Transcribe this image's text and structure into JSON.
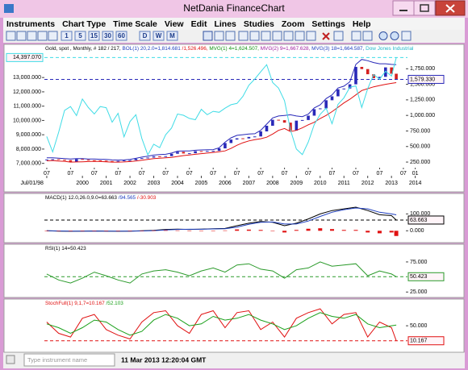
{
  "window": {
    "title": "NetDania FinanceChart"
  },
  "menu": [
    "Instruments",
    "Chart Type",
    "Time Scale",
    "View",
    "Edit",
    "Lines",
    "Studies",
    "Zoom",
    "Settings",
    "Help"
  ],
  "toolbar": {
    "intervals": [
      "1",
      "5",
      "15",
      "30",
      "60",
      "D",
      "W",
      "M"
    ]
  },
  "chart_data": [
    {
      "type": "candlestick",
      "x": [
        1998.5,
        1998.75,
        1999,
        1999.25,
        1999.5,
        1999.75,
        2000,
        2000.25,
        2000.5,
        2000.75,
        2001,
        2001.25,
        2001.5,
        2001.75,
        2002,
        2002.25,
        2002.5,
        2002.75,
        2003,
        2003.25,
        2003.5,
        2003.75,
        2004,
        2004.25,
        2004.5,
        2004.75,
        2005,
        2005.25,
        2005.5,
        2005.75,
        2006,
        2006.25,
        2006.5,
        2006.75,
        2007,
        2007.25,
        2007.5,
        2007.75,
        2008,
        2008.25,
        2008.5,
        2008.75,
        2009,
        2009.25,
        2009.5,
        2009.75,
        2010,
        2010.25,
        2010.5,
        2010.75,
        2011,
        2011.25,
        2011.5,
        2011.75,
        2012,
        2012.25,
        2012.5,
        2012.75,
        2013,
        2013.2
      ],
      "xlim": [
        1998.4,
        2015.2
      ],
      "xticks": [
        {
          "value": 1998.5,
          "label": "Jul/01/98"
        },
        {
          "value": 2000,
          "label": "2000"
        },
        {
          "value": 2001,
          "label": "2001"
        },
        {
          "value": 2002,
          "label": "2002"
        },
        {
          "value": 2003,
          "label": "2003"
        },
        {
          "value": 2004,
          "label": "2004"
        },
        {
          "value": 2005,
          "label": "2005"
        },
        {
          "value": 2006,
          "label": "2006"
        },
        {
          "value": 2007,
          "label": "2007"
        },
        {
          "value": 2008,
          "label": "2008"
        },
        {
          "value": 2009,
          "label": "2009"
        },
        {
          "value": 2010,
          "label": "2010"
        },
        {
          "value": 2011,
          "label": "2011"
        },
        {
          "value": 2012,
          "label": "2012"
        },
        {
          "value": 2013,
          "label": "2013"
        },
        {
          "value": 2014,
          "label": "2014"
        }
      ],
      "xticks_minor": [
        {
          "value": 1998.5,
          "label": "07"
        },
        {
          "value": 1999.5,
          "label": "07"
        },
        {
          "value": 2000.5,
          "label": "07"
        },
        {
          "value": 2001.5,
          "label": "07"
        },
        {
          "value": 2002.5,
          "label": "07"
        },
        {
          "value": 2003.5,
          "label": "07"
        },
        {
          "value": 2004.5,
          "label": "07"
        },
        {
          "value": 2005.5,
          "label": "07"
        },
        {
          "value": 2006.5,
          "label": "07"
        },
        {
          "value": 2007.5,
          "label": "07"
        },
        {
          "value": 2008.5,
          "label": "07"
        },
        {
          "value": 2009.5,
          "label": "07"
        },
        {
          "value": 2010.5,
          "label": "07"
        },
        {
          "value": 2011.5,
          "label": "07"
        },
        {
          "value": 2012.5,
          "label": "07"
        },
        {
          "value": 2013.5,
          "label": "07"
        },
        {
          "value": 2014,
          "label": "01"
        }
      ],
      "ylim": [
        6700,
        14700
      ],
      "yticks": [
        {
          "value": 13000,
          "label": "13,000.000"
        },
        {
          "value": 12000,
          "label": "12,000.000"
        },
        {
          "value": 11000,
          "label": "11,000.000"
        },
        {
          "value": 10000,
          "label": "10,000.000"
        },
        {
          "value": 9000,
          "label": "9,000.000"
        },
        {
          "value": 8000,
          "label": "8,000.000"
        },
        {
          "value": 7000,
          "label": "7,000.000"
        }
      ],
      "y2lim": [
        160,
        2000
      ],
      "y2ticks": [
        {
          "value": 1750,
          "label": "1,750.000"
        },
        {
          "value": 1500,
          "label": "1,500.000"
        },
        {
          "value": 1250,
          "label": "1,250.000"
        },
        {
          "value": 1000,
          "label": "1,000.000"
        },
        {
          "value": 750,
          "label": "750.000"
        },
        {
          "value": 500,
          "label": "500.000"
        },
        {
          "value": 250,
          "label": "250.000"
        }
      ],
      "ytick_side": "left",
      "legend": [
        {
          "text": "Gold, spot , Monthly, # 182 / 217,",
          "color": "#000000"
        },
        {
          "text": "BOL(1) 20,2.0=1,814.681",
          "color": "#1f3fbf"
        },
        {
          "text": "/1,526.496,",
          "color": "#e01010"
        },
        {
          "text": "MVG(1) 4=1,624.507,",
          "color": "#109010"
        },
        {
          "text": "MVG(2) 9=1,667.628,",
          "color": "#a020a0"
        },
        {
          "text": "MVG(3) 18=1,664.587,",
          "color": "#1f3fbf"
        },
        {
          "text": "Dow Jones Industrial",
          "color": "#20b8c8"
        }
      ],
      "series": [
        {
          "type": "candlestick",
          "axis": "y2",
          "color": "#2828b8",
          "down_color": "#d42020",
          "last_label": "1,579.330",
          "values": [
            292,
            296,
            287,
            280,
            256,
            299,
            288,
            279,
            277,
            273,
            266,
            258,
            268,
            278,
            280,
            302,
            314,
            323,
            343,
            336,
            346,
            384,
            415,
            388,
            392,
            426,
            422,
            429,
            430,
            470,
            556,
            612,
            632,
            630,
            654,
            662,
            743,
            834,
            930,
            923,
            884,
            756,
            916,
            926,
            996,
            1100,
            1113,
            1244,
            1307,
            1420,
            1432,
            1500,
            1780,
            1745,
            1662,
            1598,
            1620,
            1772,
            1670,
            1579.33
          ]
        },
        {
          "type": "line",
          "axis": "y2",
          "color": "#2828b8",
          "values": [
            320,
            318,
            312,
            305,
            300,
            305,
            305,
            300,
            298,
            295,
            292,
            285,
            282,
            285,
            292,
            310,
            330,
            345,
            362,
            370,
            375,
            395,
            425,
            430,
            430,
            440,
            445,
            448,
            450,
            480,
            570,
            640,
            680,
            690,
            700,
            705,
            760,
            860,
            960,
            990,
            1000,
            1010,
            990,
            980,
            1020,
            1120,
            1170,
            1270,
            1330,
            1440,
            1470,
            1540,
            1820,
            1900,
            1880,
            1850,
            1830,
            1830,
            1820,
            1814.681
          ]
        },
        {
          "type": "line",
          "axis": "y2",
          "color": "#e01010",
          "values": [
            270,
            275,
            265,
            262,
            250,
            252,
            255,
            258,
            262,
            260,
            255,
            250,
            250,
            252,
            258,
            266,
            280,
            292,
            305,
            312,
            318,
            325,
            340,
            355,
            365,
            375,
            385,
            395,
            405,
            415,
            430,
            470,
            520,
            560,
            590,
            610,
            625,
            650,
            700,
            760,
            790,
            740,
            760,
            800,
            850,
            890,
            950,
            1000,
            1060,
            1130,
            1200,
            1260,
            1330,
            1400,
            1430,
            1460,
            1480,
            1500,
            1515,
            1526.496
          ]
        },
        {
          "type": "line",
          "axis": "y",
          "color": "#3fdce6",
          "last_label": "14,397.070",
          "values": [
            8880,
            7800,
            9180,
            10700,
            10970,
            10340,
            11500,
            10900,
            10450,
            10970,
            10890,
            9880,
            10500,
            8850,
            9920,
            10400,
            8740,
            7590,
            8340,
            8100,
            9000,
            9470,
            10450,
            10360,
            10140,
            10050,
            10780,
            10400,
            10640,
            10570,
            10860,
            11100,
            11190,
            11680,
            12460,
            12900,
            13400,
            13900,
            12650,
            12260,
            11380,
            9330,
            8000,
            7610,
            8500,
            9710,
            10430,
            10860,
            9770,
            11120,
            11580,
            12320,
            12410,
            10910,
            12220,
            13210,
            12880,
            13440,
            13100,
            14397.07
          ]
        }
      ]
    },
    {
      "type": "line",
      "x": [
        1998.5,
        1999,
        1999.5,
        2000,
        2000.5,
        2001,
        2001.5,
        2002,
        2002.5,
        2003,
        2003.5,
        2004,
        2004.5,
        2005,
        2005.5,
        2006,
        2006.5,
        2007,
        2007.5,
        2008,
        2008.5,
        2009,
        2009.5,
        2010,
        2010.5,
        2011,
        2011.5,
        2012,
        2012.5,
        2013,
        2013.2
      ],
      "xlim": [
        1998.4,
        2015.2
      ],
      "ylim": [
        -56,
        183
      ],
      "yticks": [
        {
          "value": 100,
          "label": "100.000"
        },
        {
          "value": 0,
          "label": "0.000"
        }
      ],
      "ytick_side": "right",
      "legend": [
        {
          "text": "MACD(1) 12.0,26.0,9.0=63.663",
          "color": "#000000"
        },
        {
          "text": "/94.565",
          "color": "#1f3fbf"
        },
        {
          "text": "/-30.903",
          "color": "#e01010"
        }
      ],
      "series": [
        {
          "type": "line",
          "color": "#000000",
          "last_label": "63.663",
          "values": [
            0,
            -2,
            -3,
            -2,
            -1,
            -2,
            -3,
            -2,
            0,
            3,
            8,
            10,
            8,
            10,
            12,
            14,
            30,
            45,
            55,
            50,
            30,
            45,
            70,
            100,
            120,
            130,
            140,
            120,
            95,
            90,
            63.663
          ]
        },
        {
          "type": "line",
          "color": "#1f3fbf",
          "values": [
            0,
            -1,
            -2,
            -2,
            -2,
            -2,
            -2,
            -2,
            -1,
            1,
            5,
            8,
            9,
            9,
            11,
            12,
            22,
            38,
            50,
            52,
            40,
            40,
            58,
            85,
            110,
            125,
            135,
            130,
            110,
            100,
            94.565
          ]
        },
        {
          "type": "bar",
          "color": "#e01010",
          "values": [
            -1,
            -1,
            -1,
            0,
            1,
            0,
            -1,
            0,
            1,
            2,
            3,
            2,
            -1,
            1,
            1,
            2,
            8,
            7,
            5,
            -2,
            -10,
            5,
            12,
            15,
            10,
            5,
            5,
            -10,
            -15,
            -10,
            -30.903
          ]
        }
      ]
    },
    {
      "type": "line",
      "x": [
        1998.5,
        1999,
        1999.5,
        2000,
        2000.5,
        2001,
        2001.5,
        2002,
        2002.5,
        2003,
        2003.5,
        2004,
        2004.5,
        2005,
        2005.5,
        2006,
        2006.5,
        2007,
        2007.5,
        2008,
        2008.5,
        2009,
        2009.5,
        2010,
        2010.5,
        2011,
        2011.5,
        2012,
        2012.5,
        2013,
        2013.2
      ],
      "xlim": [
        1998.4,
        2015.2
      ],
      "ylim": [
        20,
        95
      ],
      "yticks": [
        {
          "value": 75,
          "label": "75.000"
        },
        {
          "value": 25,
          "label": "25.000"
        }
      ],
      "ytick_side": "right",
      "legend": [
        {
          "text": "RSI(1) 14=50.423",
          "color": "#000000"
        }
      ],
      "series": [
        {
          "type": "line",
          "color": "#2a9a2a",
          "last_label": "50.423",
          "values": [
            55,
            45,
            40,
            48,
            58,
            52,
            45,
            40,
            55,
            60,
            62,
            58,
            52,
            60,
            65,
            58,
            70,
            72,
            63,
            60,
            48,
            62,
            65,
            75,
            68,
            70,
            72,
            52,
            60,
            55,
            50.423
          ]
        }
      ]
    },
    {
      "type": "line",
      "x": [
        1998.5,
        1999,
        1999.5,
        2000,
        2000.5,
        2001,
        2001.5,
        2002,
        2002.5,
        2003,
        2003.5,
        2004,
        2004.5,
        2005,
        2005.5,
        2006,
        2006.5,
        2007,
        2007.5,
        2008,
        2008.5,
        2009,
        2009.5,
        2010,
        2010.5,
        2011,
        2011.5,
        2012,
        2012.5,
        2013,
        2013.2
      ],
      "xlim": [
        1998.4,
        2015.2
      ],
      "ylim": [
        -14,
        106
      ],
      "yticks": [
        {
          "value": 50,
          "label": "50.000"
        }
      ],
      "ytick_side": "right",
      "legend": [
        {
          "text": "StochFull(1) 9,1,7=10.167",
          "color": "#e01010"
        },
        {
          "text": "/52.103",
          "color": "#1aa01a"
        }
      ],
      "series": [
        {
          "type": "line",
          "color": "#e01010",
          "last_label": "10.167",
          "values": [
            60,
            30,
            20,
            70,
            80,
            40,
            25,
            15,
            60,
            85,
            90,
            50,
            30,
            80,
            90,
            45,
            85,
            90,
            40,
            60,
            20,
            70,
            85,
            95,
            55,
            80,
            85,
            20,
            60,
            45,
            10.167
          ]
        },
        {
          "type": "line",
          "color": "#1aa01a",
          "values": [
            55,
            45,
            30,
            45,
            65,
            60,
            40,
            25,
            35,
            65,
            80,
            70,
            50,
            55,
            75,
            65,
            70,
            80,
            65,
            55,
            40,
            50,
            70,
            85,
            75,
            70,
            80,
            55,
            45,
            50,
            52.103
          ]
        }
      ]
    }
  ],
  "status": {
    "input_placeholder": "Type instrument name",
    "timestamp": "11 Mar 2013 12:20:04 GMT"
  }
}
